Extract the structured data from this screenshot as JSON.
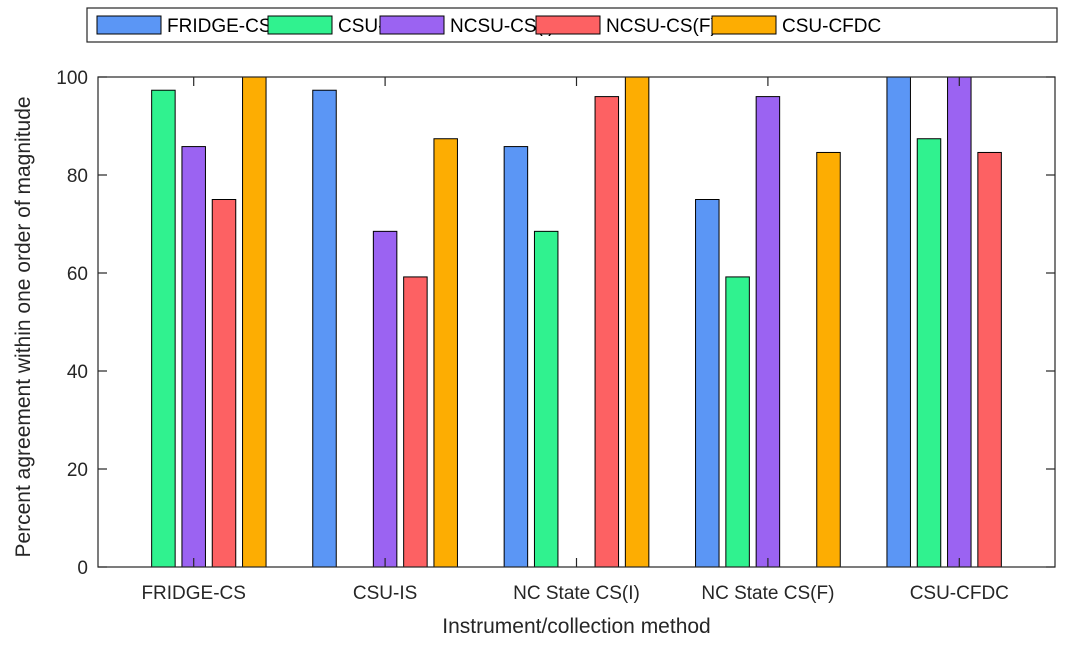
{
  "chart_data": {
    "type": "bar",
    "xlabel": "Instrument/collection method",
    "ylabel": "Percent agreement within one order of magnitude",
    "ylim": [
      0,
      100
    ],
    "yticks": [
      0,
      20,
      40,
      60,
      80,
      100
    ],
    "grid": false,
    "legend_position": "top",
    "categories": [
      "FRIDGE-CS",
      "CSU-IS",
      "NC State CS(I)",
      "NC State CS(F)",
      "CSU-CFDC"
    ],
    "series": [
      {
        "name": "FRIDGE-CS",
        "color": "#5b96f5",
        "values": [
          null,
          97.3,
          85.8,
          75.0,
          100.0
        ]
      },
      {
        "name": "CSU-IS",
        "color": "#30f28f",
        "values": [
          97.3,
          null,
          68.5,
          59.2,
          87.4
        ]
      },
      {
        "name": "NCSU-CS(I)",
        "color": "#9b63f2",
        "values": [
          85.8,
          68.5,
          null,
          96.0,
          100.0
        ]
      },
      {
        "name": "NCSU-CS(F)",
        "color": "#fd6163",
        "values": [
          75.0,
          59.2,
          96.0,
          null,
          84.6
        ]
      },
      {
        "name": "CSU-CFDC",
        "color": "#fdad02",
        "values": [
          100.0,
          87.4,
          100.0,
          84.6,
          null
        ]
      }
    ]
  }
}
